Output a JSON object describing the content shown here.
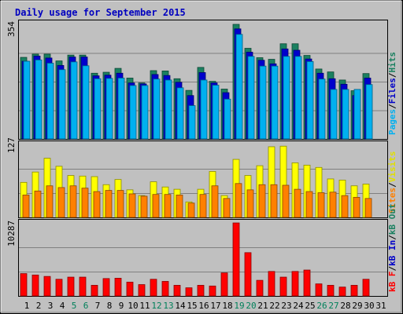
{
  "chart_data": [
    {
      "type": "bar",
      "title": "Daily usage for September 2015",
      "panel": "hits-files-pages",
      "ymax_label": "354",
      "ymax": 354,
      "days": [
        "1",
        "2",
        "3",
        "4",
        "5",
        "6",
        "7",
        "8",
        "9",
        "10",
        "11",
        "12",
        "13",
        "14",
        "15",
        "16",
        "17",
        "18",
        "19",
        "20",
        "21",
        "22",
        "23",
        "24",
        "25",
        "26",
        "27",
        "28",
        "29",
        "30",
        "31"
      ],
      "weekend_days": [
        5,
        6,
        12,
        13,
        19,
        20,
        26,
        27
      ],
      "right_labels": [
        {
          "text": "Pages",
          "color": "#00b0f0"
        },
        {
          "text": "/",
          "color": "#000000"
        },
        {
          "text": "Files",
          "color": "#0000c8"
        },
        {
          "text": "/",
          "color": "#000000"
        },
        {
          "text": "Hits",
          "color": "#1a8060"
        }
      ],
      "series": [
        {
          "name": "Hits",
          "color": "#1a8060",
          "values": [
            252,
            262,
            262,
            241,
            259,
            259,
            203,
            206,
            218,
            188,
            173,
            211,
            210,
            186,
            150,
            221,
            178,
            154,
            354,
            280,
            251,
            246,
            294,
            294,
            258,
            216,
            207,
            182,
            149,
            202,
            0
          ]
        },
        {
          "name": "Files",
          "color": "#0000cc",
          "values": [
            240,
            256,
            250,
            227,
            253,
            253,
            195,
            197,
            203,
            173,
            170,
            199,
            196,
            175,
            134,
            205,
            173,
            143,
            340,
            268,
            243,
            232,
            278,
            274,
            247,
            203,
            186,
            169,
            134,
            188,
            0
          ]
        },
        {
          "name": "Pages",
          "color": "#00b0f0",
          "values": [
            240,
            244,
            234,
            214,
            238,
            226,
            186,
            187,
            188,
            165,
            165,
            185,
            182,
            158,
            103,
            182,
            166,
            123,
            323,
            255,
            225,
            225,
            255,
            255,
            239,
            185,
            153,
            153,
            153,
            168,
            0
          ]
        }
      ]
    },
    {
      "type": "bar",
      "panel": "visits-sites",
      "ymax_label": "127",
      "ymax": 127,
      "right_labels": [
        {
          "text": "Sites",
          "color": "#ff8000"
        },
        {
          "text": "/",
          "color": "#000000"
        },
        {
          "text": "Visits",
          "color": "#e0e000"
        }
      ],
      "series": [
        {
          "name": "Visits",
          "color": "#ffff00",
          "values": [
            61,
            79,
            103,
            89,
            73,
            72,
            71,
            57,
            66,
            48,
            38,
            62,
            53,
            49,
            27,
            49,
            80,
            38,
            101,
            73,
            90,
            123,
            124,
            95,
            91,
            87,
            67,
            65,
            55,
            58,
            0
          ]
        },
        {
          "name": "Sites",
          "color": "#ff8000",
          "values": [
            39,
            46,
            55,
            52,
            55,
            51,
            45,
            47,
            47,
            41,
            37,
            40,
            40,
            39,
            25,
            40,
            55,
            33,
            59,
            48,
            57,
            57,
            56,
            49,
            45,
            43,
            44,
            38,
            35,
            33,
            0
          ]
        }
      ]
    },
    {
      "type": "bar",
      "panel": "kbytes",
      "ymax_label": "10287",
      "ymax": 10287,
      "right_labels": [
        {
          "text": "kB F",
          "color": "#ff0000"
        },
        {
          "text": "/",
          "color": "#000000"
        },
        {
          "text": "kB In",
          "color": "#0000c8"
        },
        {
          "text": "/",
          "color": "#000000"
        },
        {
          "text": "kB Out",
          "color": "#1a8060"
        }
      ],
      "series": [
        {
          "name": "kB F",
          "color": "#ff0000",
          "values": [
            3150,
            2950,
            2750,
            2350,
            2650,
            2650,
            1500,
            2450,
            2500,
            1950,
            1600,
            2350,
            2050,
            1500,
            1150,
            1500,
            1400,
            3250,
            10287,
            6100,
            2200,
            3450,
            2650,
            3450,
            3650,
            1700,
            1500,
            1250,
            1500,
            2350,
            0
          ]
        }
      ]
    }
  ]
}
